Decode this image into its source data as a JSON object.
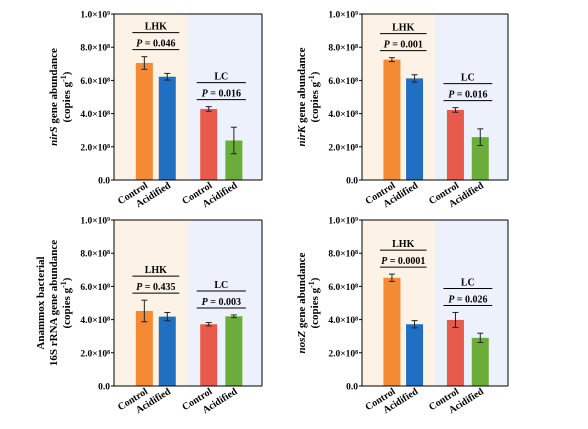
{
  "colors": {
    "control_lhk": "#f48a33",
    "acidified_lhk": "#1f70c2",
    "control_lc": "#e85a4c",
    "acidified_lc": "#6aad3a",
    "bg_lhk": "#fdf2e6",
    "bg_lc": "#ecf1fb"
  },
  "chart_data": [
    {
      "type": "bar",
      "ylabel": {
        "line1_italic": "nirS",
        "line1_rest": " gene abundance",
        "line2": "(copies g",
        "sup": "-1",
        "line2_end": ")"
      },
      "y_ticks": [
        "0.0",
        "2.0×10⁸",
        "4.0×10⁸",
        "6.0×10⁸",
        "8.0×10⁸",
        "1.0×10⁹"
      ],
      "ylim": [
        0,
        1000000000
      ],
      "categories": [
        "Control",
        "Acidified",
        "Control",
        "Acidified"
      ],
      "values": [
        705000000,
        622000000,
        428000000,
        238000000
      ],
      "errors": [
        38000000,
        20000000,
        14000000,
        80000000
      ],
      "groups": [
        {
          "name": "LHK",
          "p_label": "P",
          "p_value": " = 0.046"
        },
        {
          "name": "LC",
          "p_label": "P",
          "p_value": " = 0.016"
        }
      ]
    },
    {
      "type": "bar",
      "ylabel": {
        "line1_italic": "nirK",
        "line1_rest": " gene abundance",
        "line2": "(copies g",
        "sup": "-1",
        "line2_end": ")"
      },
      "y_ticks": [
        "0.0",
        "2.0×10⁸",
        "4.0×10⁸",
        "6.0×10⁸",
        "8.0×10⁸",
        "1.0×10⁹"
      ],
      "ylim": [
        0,
        1000000000
      ],
      "categories": [
        "Control",
        "Acidified",
        "Control",
        "Acidified"
      ],
      "values": [
        725000000,
        612000000,
        422000000,
        258000000
      ],
      "errors": [
        12000000,
        22000000,
        14000000,
        50000000
      ],
      "groups": [
        {
          "name": "LHK",
          "p_label": "P",
          "p_value": " = 0.001"
        },
        {
          "name": "LC",
          "p_label": "P",
          "p_value": " = 0.016"
        }
      ]
    },
    {
      "type": "bar",
      "ylabel": {
        "line0": "Anammox bacterial",
        "line1": "16S rRNA gene abundance",
        "line2": "(copies g",
        "sup": "-1",
        "line2_end": ")"
      },
      "y_ticks": [
        "0.0",
        "2.0×10⁸",
        "4.0×10⁸",
        "6.0×10⁸",
        "8.0×10⁸",
        "1.0×10⁹"
      ],
      "ylim": [
        0,
        1000000000
      ],
      "categories": [
        "Control",
        "Acidified",
        "Control",
        "Acidified"
      ],
      "values": [
        452000000,
        418000000,
        372000000,
        420000000
      ],
      "errors": [
        65000000,
        25000000,
        10000000,
        8000000
      ],
      "groups": [
        {
          "name": "LHK",
          "p_label": "P",
          "p_value": " = 0.435"
        },
        {
          "name": "LC",
          "p_label": "P",
          "p_value": " = 0.003"
        }
      ]
    },
    {
      "type": "bar",
      "ylabel": {
        "line1_italic": "nosZ",
        "line1_rest": " gene abundance",
        "line2": "(copies g",
        "sup": "-1",
        "line2_end": ")"
      },
      "y_ticks": [
        "0.0",
        "2.0×10⁸",
        "4.0×10⁸",
        "6.0×10⁸",
        "8.0×10⁸",
        "1.0×10⁹"
      ],
      "ylim": [
        0,
        1000000000
      ],
      "categories": [
        "Control",
        "Acidified",
        "Control",
        "Acidified"
      ],
      "values": [
        652000000,
        372000000,
        398000000,
        290000000
      ],
      "errors": [
        22000000,
        22000000,
        45000000,
        28000000
      ],
      "groups": [
        {
          "name": "LHK",
          "p_label": "P",
          "p_value": " = 0.0001"
        },
        {
          "name": "LC",
          "p_label": "P",
          "p_value": " = 0.026"
        }
      ]
    }
  ]
}
